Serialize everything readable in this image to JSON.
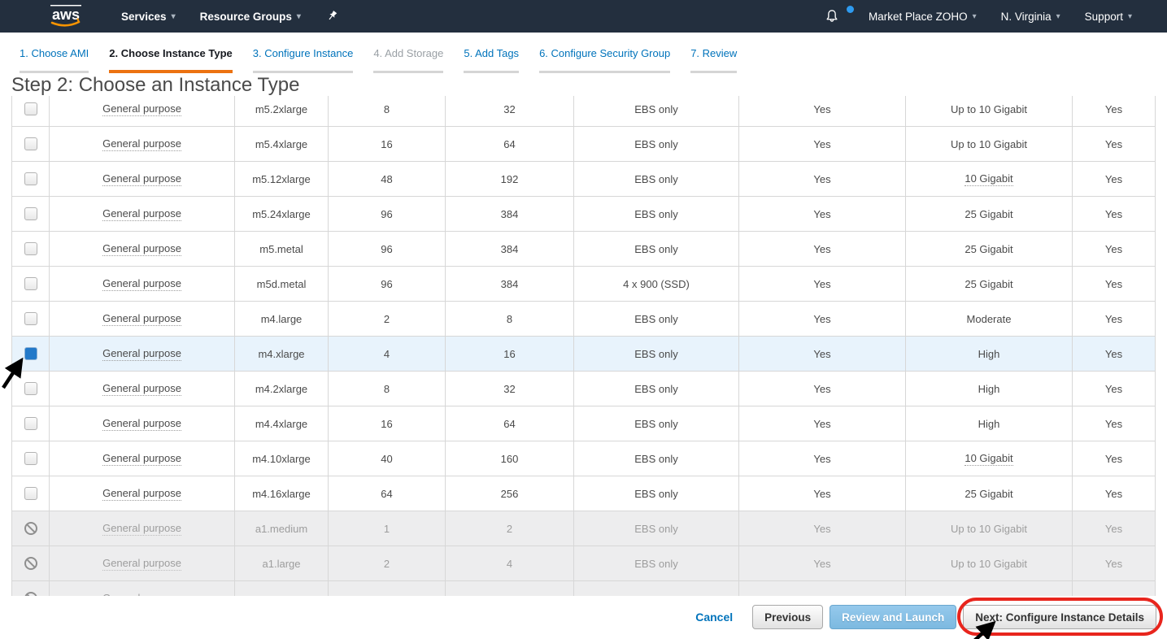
{
  "navbar": {
    "logo_text": "aws",
    "caret_glyph": "▾",
    "left_items": [
      {
        "label": "Services"
      },
      {
        "label": "Resource Groups"
      }
    ],
    "right_items": [
      {
        "label": "Market Place ZOHO"
      },
      {
        "label": "N. Virginia"
      },
      {
        "label": "Support"
      }
    ]
  },
  "wizard_tabs": [
    {
      "label": "1. Choose AMI",
      "state": "link"
    },
    {
      "label": "2. Choose Instance Type",
      "state": "active"
    },
    {
      "label": "3. Configure Instance",
      "state": "link"
    },
    {
      "label": "4. Add Storage",
      "state": "disabled"
    },
    {
      "label": "5. Add Tags",
      "state": "link"
    },
    {
      "label": "6. Configure Security Group",
      "state": "link"
    },
    {
      "label": "7. Review",
      "state": "link"
    }
  ],
  "main": {
    "heading": "Step 2: Choose an Instance Type"
  },
  "table": {
    "rows": [
      {
        "family": "General purpose",
        "type": "m5.2xlarge",
        "vcpus": "8",
        "memory": "32",
        "storage": "EBS only",
        "ebs": "Yes",
        "network": "Up to 10 Gigabit",
        "net_tip": false,
        "ipv6": "Yes",
        "state": "normal"
      },
      {
        "family": "General purpose",
        "type": "m5.4xlarge",
        "vcpus": "16",
        "memory": "64",
        "storage": "EBS only",
        "ebs": "Yes",
        "network": "Up to 10 Gigabit",
        "net_tip": false,
        "ipv6": "Yes",
        "state": "normal"
      },
      {
        "family": "General purpose",
        "type": "m5.12xlarge",
        "vcpus": "48",
        "memory": "192",
        "storage": "EBS only",
        "ebs": "Yes",
        "network": "10 Gigabit",
        "net_tip": true,
        "ipv6": "Yes",
        "state": "normal"
      },
      {
        "family": "General purpose",
        "type": "m5.24xlarge",
        "vcpus": "96",
        "memory": "384",
        "storage": "EBS only",
        "ebs": "Yes",
        "network": "25 Gigabit",
        "net_tip": false,
        "ipv6": "Yes",
        "state": "normal"
      },
      {
        "family": "General purpose",
        "type": "m5.metal",
        "vcpus": "96",
        "memory": "384",
        "storage": "EBS only",
        "ebs": "Yes",
        "network": "25 Gigabit",
        "net_tip": false,
        "ipv6": "Yes",
        "state": "normal"
      },
      {
        "family": "General purpose",
        "type": "m5d.metal",
        "vcpus": "96",
        "memory": "384",
        "storage": "4 x 900 (SSD)",
        "ebs": "Yes",
        "network": "25 Gigabit",
        "net_tip": false,
        "ipv6": "Yes",
        "state": "normal"
      },
      {
        "family": "General purpose",
        "type": "m4.large",
        "vcpus": "2",
        "memory": "8",
        "storage": "EBS only",
        "ebs": "Yes",
        "network": "Moderate",
        "net_tip": false,
        "ipv6": "Yes",
        "state": "normal"
      },
      {
        "family": "General purpose",
        "type": "m4.xlarge",
        "vcpus": "4",
        "memory": "16",
        "storage": "EBS only",
        "ebs": "Yes",
        "network": "High",
        "net_tip": false,
        "ipv6": "Yes",
        "state": "selected"
      },
      {
        "family": "General purpose",
        "type": "m4.2xlarge",
        "vcpus": "8",
        "memory": "32",
        "storage": "EBS only",
        "ebs": "Yes",
        "network": "High",
        "net_tip": false,
        "ipv6": "Yes",
        "state": "normal"
      },
      {
        "family": "General purpose",
        "type": "m4.4xlarge",
        "vcpus": "16",
        "memory": "64",
        "storage": "EBS only",
        "ebs": "Yes",
        "network": "High",
        "net_tip": false,
        "ipv6": "Yes",
        "state": "normal"
      },
      {
        "family": "General purpose",
        "type": "m4.10xlarge",
        "vcpus": "40",
        "memory": "160",
        "storage": "EBS only",
        "ebs": "Yes",
        "network": "10 Gigabit",
        "net_tip": true,
        "ipv6": "Yes",
        "state": "normal"
      },
      {
        "family": "General purpose",
        "type": "m4.16xlarge",
        "vcpus": "64",
        "memory": "256",
        "storage": "EBS only",
        "ebs": "Yes",
        "network": "25 Gigabit",
        "net_tip": false,
        "ipv6": "Yes",
        "state": "normal"
      },
      {
        "family": "General purpose",
        "type": "a1.medium",
        "vcpus": "1",
        "memory": "2",
        "storage": "EBS only",
        "ebs": "Yes",
        "network": "Up to 10 Gigabit",
        "net_tip": false,
        "ipv6": "Yes",
        "state": "disabled"
      },
      {
        "family": "General purpose",
        "type": "a1.large",
        "vcpus": "2",
        "memory": "4",
        "storage": "EBS only",
        "ebs": "Yes",
        "network": "Up to 10 Gigabit",
        "net_tip": false,
        "ipv6": "Yes",
        "state": "disabled"
      },
      {
        "family": "General purpose",
        "type": "",
        "vcpus": "",
        "memory": "",
        "storage": "",
        "ebs": "",
        "network": "",
        "net_tip": false,
        "ipv6": "",
        "state": "disabled"
      }
    ]
  },
  "footer": {
    "cancel_label": "Cancel",
    "previous_label": "Previous",
    "review_label": "Review and Launch",
    "next_label": "Next: Configure Instance Details"
  },
  "colors": {
    "navbar_bg": "#232f3e",
    "accent_orange": "#ec7211",
    "link_blue": "#0073bb",
    "selected_row_bg": "#e8f3fc",
    "disabled_row_bg": "#ededee",
    "checkbox_checked": "#2379c9",
    "annotation_red": "#e8251d",
    "logo_smile_orange": "#f79400",
    "notification_dot": "#2e9bf0"
  }
}
